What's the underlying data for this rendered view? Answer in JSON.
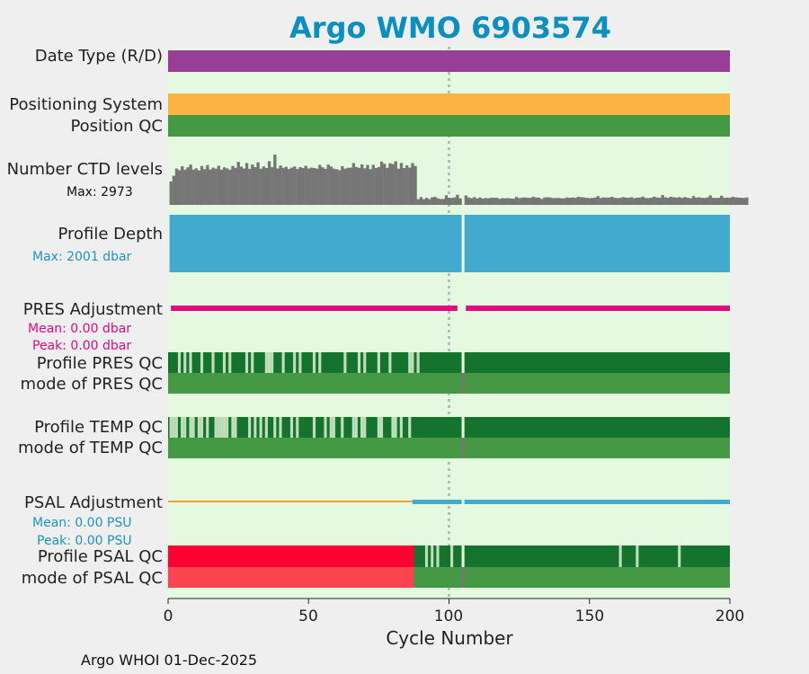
{
  "title": "Argo WMO 6903574",
  "footer": "Argo WHOI 01-Dec-2025",
  "labels": {
    "date_type": "Date Type (R/D)",
    "positioning_system": "Positioning System",
    "position_qc": "Position QC",
    "number_ctd_levels": "Number CTD levels",
    "ctd_max": "Max: 2973",
    "profile_depth": "Profile Depth",
    "depth_max": "Max: 2001 dbar",
    "pres_adjustment": "PRES Adjustment",
    "pres_mean": "Mean: 0.00 dbar",
    "pres_peak": "Peak: 0.00 dbar",
    "profile_pres_qc": "Profile PRES QC",
    "mode_pres_qc": "mode of PRES QC",
    "profile_temp_qc": "Profile TEMP QC",
    "mode_temp_qc": "mode of TEMP QC",
    "psal_adjustment": "PSAL Adjustment",
    "psal_mean": "Mean: 0.00 PSU",
    "psal_peak": "Peak: 0.00 PSU",
    "profile_psal_qc": "Profile PSAL QC",
    "mode_psal_qc": "mode of PSAL QC"
  },
  "colors": {
    "background": "#e5f8e0",
    "date_type": "#993e97",
    "positioning_system": "#fbb441",
    "position_qc": "#459944",
    "ctd_bars": "#767676",
    "profile_depth": "#42a9cf",
    "pres_adjustment": "#e5097f",
    "profile_qc_good": "#14732d",
    "profile_qc_light": "#bfdeb9",
    "mode_qc": "#459944",
    "psal_adjustment_blue": "#42a9cf",
    "psal_adjustment_orange": "#f0a030",
    "psal_qc_bad": "#ff0030",
    "psal_mode_bad": "#fd4350",
    "gap": "#777777",
    "ref_line": "#bbbbbb",
    "ctd_label": "#111111",
    "depth_label": "#1896c0",
    "pres_label": "#e5097f",
    "psal_label": "#1896c0"
  },
  "chart_data": {
    "type": "bar",
    "xlabel": "Cycle Number",
    "xlim": [
      0,
      200
    ],
    "xticks": [
      0,
      50,
      100,
      150,
      200
    ],
    "reference_line_cycle": 100,
    "missing_cycle": 105,
    "number_ctd_levels": {
      "max": 2973,
      "values": [
        1380,
        1720,
        2150,
        2050,
        2280,
        2080,
        2220,
        2380,
        2090,
        2160,
        2040,
        2300,
        2110,
        2350,
        2090,
        2200,
        2140,
        2310,
        2080,
        2220,
        2160,
        2080,
        2300,
        2190,
        2540,
        2260,
        2150,
        2470,
        2130,
        2380,
        2230,
        2520,
        2140,
        2270,
        2180,
        2580,
        2230,
        2970,
        2150,
        2330,
        2190,
        2250,
        2120,
        2200,
        2270,
        2120,
        2230,
        2180,
        2310,
        2150,
        2200,
        2180,
        2140,
        2370,
        2220,
        2130,
        2380,
        2270,
        2140,
        2110,
        2050,
        2290,
        2140,
        2190,
        2200,
        2470,
        2240,
        2190,
        2390,
        2160,
        2360,
        2110,
        2370,
        2180,
        2240,
        2560,
        2430,
        2190,
        2460,
        2410,
        2570,
        2140,
        2480,
        2180,
        2340,
        2200,
        2470,
        2300,
        340,
        460,
        340,
        420,
        340,
        450,
        480,
        390,
        350,
        350,
        570,
        420,
        410,
        440,
        600,
        380,
        0,
        560,
        440,
        390,
        460,
        380,
        440,
        370,
        410,
        390,
        420,
        420,
        420,
        360,
        400,
        390,
        400,
        380,
        370,
        470,
        400,
        430,
        440,
        420,
        420,
        480,
        430,
        430,
        350,
        440,
        450,
        440,
        400,
        410,
        410,
        390,
        390,
        440,
        420,
        440,
        420,
        480,
        460,
        440,
        420,
        400,
        410,
        430,
        520,
        410,
        440,
        430,
        430,
        480,
        420,
        400,
        420,
        460,
        430,
        420,
        450,
        400,
        430,
        430,
        490,
        410,
        400,
        420,
        480,
        440,
        420,
        580,
        450,
        420,
        480,
        450,
        430,
        460,
        410,
        460,
        420,
        390,
        520,
        430,
        450,
        420,
        410,
        440,
        560,
        420,
        410,
        420,
        540,
        420,
        430,
        420,
        480,
        440,
        430,
        420,
        410,
        440
      ]
    },
    "profile_depth_max": 2001,
    "pres_adjustment": {
      "mean": 0.0,
      "peak": 0.0
    },
    "psal_adjustment": {
      "mean": 0.0,
      "peak": 0.0
    },
    "pres_qc_light_cycles": [
      4,
      6,
      8,
      12,
      16,
      20,
      22,
      28,
      30,
      35,
      36,
      37,
      41,
      45,
      47,
      52,
      54,
      63,
      68,
      70,
      75,
      79,
      86,
      87,
      89
    ],
    "temp_qc_light_cycles": [
      1,
      2,
      3,
      5,
      6,
      8,
      9,
      11,
      12,
      14,
      17,
      18,
      19,
      20,
      21,
      23,
      24,
      29,
      31,
      33,
      35,
      38,
      40,
      44,
      46,
      52,
      56,
      58,
      59,
      62,
      66,
      67,
      69,
      70,
      75,
      76,
      80,
      81,
      83,
      86
    ],
    "psal_qc_bad_range": [
      1,
      87
    ],
    "psal_qc_light_cycles": [
      92,
      94,
      96,
      101,
      161,
      167,
      182
    ]
  }
}
